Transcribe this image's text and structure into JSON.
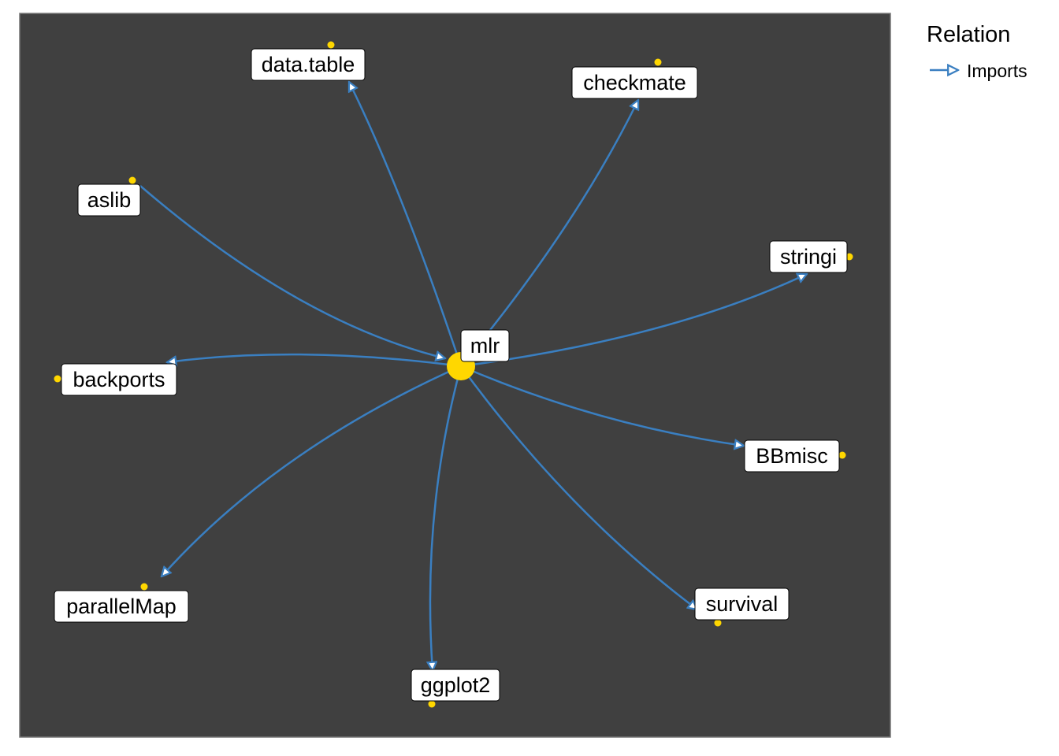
{
  "legend": {
    "title": "Relation",
    "entries": [
      {
        "label": "Imports",
        "color": "#3A7FC1"
      }
    ]
  },
  "colors": {
    "panel": "#404040",
    "edge": "#3A7FC1",
    "node": "#FFD700",
    "label_fill": "#FFFFFF"
  },
  "center": {
    "label": "mlr"
  },
  "nodes": [
    {
      "id": "data.table",
      "label": "data.table"
    },
    {
      "id": "checkmate",
      "label": "checkmate"
    },
    {
      "id": "aslib",
      "label": "aslib"
    },
    {
      "id": "stringi",
      "label": "stringi"
    },
    {
      "id": "backports",
      "label": "backports"
    },
    {
      "id": "BBmisc",
      "label": "BBmisc"
    },
    {
      "id": "parallelMap",
      "label": "parallelMap"
    },
    {
      "id": "survival",
      "label": "survival"
    },
    {
      "id": "ggplot2",
      "label": "ggplot2"
    }
  ],
  "edges": [
    {
      "from": "mlr",
      "to": "data.table",
      "relation": "Imports"
    },
    {
      "from": "mlr",
      "to": "checkmate",
      "relation": "Imports"
    },
    {
      "from": "aslib",
      "to": "mlr",
      "relation": "Imports"
    },
    {
      "from": "mlr",
      "to": "stringi",
      "relation": "Imports"
    },
    {
      "from": "mlr",
      "to": "backports",
      "relation": "Imports"
    },
    {
      "from": "mlr",
      "to": "BBmisc",
      "relation": "Imports"
    },
    {
      "from": "mlr",
      "to": "parallelMap",
      "relation": "Imports"
    },
    {
      "from": "mlr",
      "to": "survival",
      "relation": "Imports"
    },
    {
      "from": "mlr",
      "to": "ggplot2",
      "relation": "Imports"
    }
  ]
}
